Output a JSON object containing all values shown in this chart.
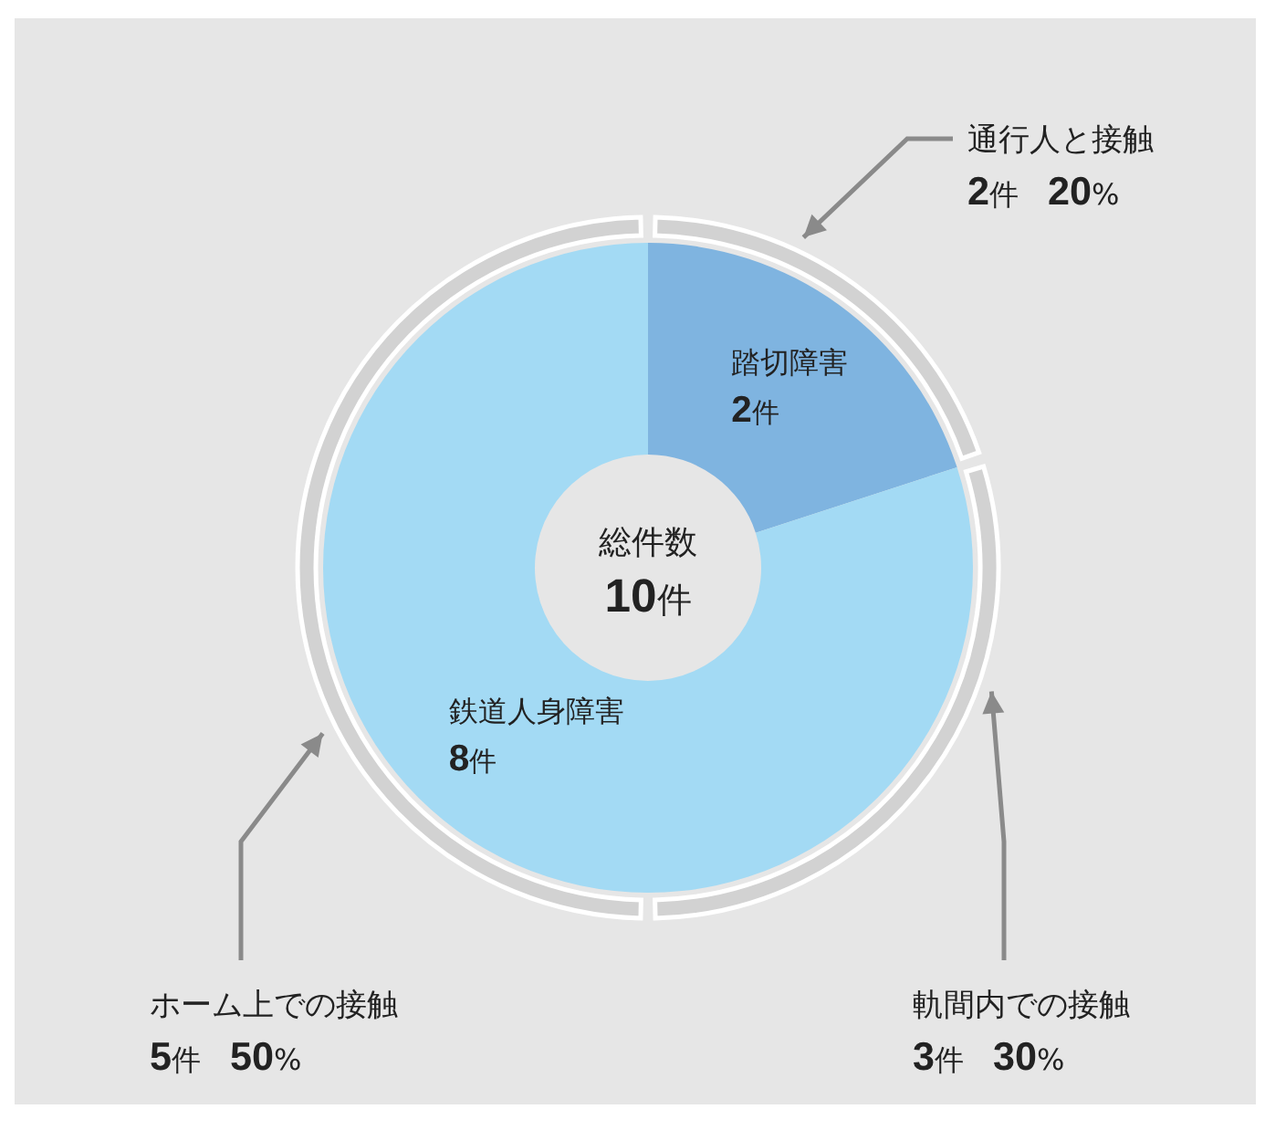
{
  "chart_data": [
    {
      "type": "donut",
      "categories": [
        "踏切障害",
        "鉄道人身障害"
      ],
      "values": [
        2,
        8
      ],
      "colors": [
        "#7fb4e0",
        "#a3daf4"
      ],
      "value_labels": [
        "2件",
        "8件"
      ],
      "annotations": [
        "総件数",
        "10件"
      ]
    },
    {
      "type": "donut",
      "categories": [
        "通行人と接触",
        "軌間内での接触",
        "ホーム上での接触"
      ],
      "values": [
        2,
        3,
        5
      ],
      "colors": [
        "#d2d2d2",
        "#d2d2d2",
        "#d2d2d2"
      ],
      "value_labels": [
        "2件　20%",
        "3件　30%",
        "5件　50%"
      ]
    }
  ]
}
